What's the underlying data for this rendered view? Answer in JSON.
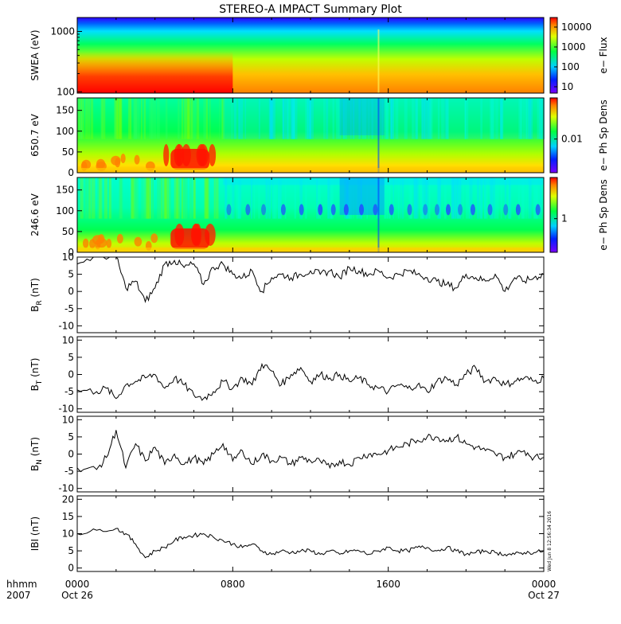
{
  "title": "STEREO-A IMPACT Summary Plot",
  "stamp": "Wed Jun  8 12:56:34 2016",
  "chart_data": [
    {
      "type": "heatmap",
      "name": "swea-flux",
      "ylabel": "SWEA (eV)",
      "yscale": "log",
      "yticks": [
        {
          "label": "1000",
          "value": 1000
        },
        {
          "label": "100",
          "value": 100
        }
      ],
      "ylim": [
        95,
        1700
      ],
      "colorbar": {
        "label": "e− Flux",
        "scale": "log",
        "ticks": [
          "10000",
          "1000",
          "100",
          "10"
        ]
      }
    },
    {
      "type": "heatmap",
      "name": "pad-650",
      "ylabel": "650.7 eV",
      "yticks": [
        "150",
        "100",
        "50",
        "0"
      ],
      "ylim": [
        0,
        180
      ],
      "colorbar": {
        "label": "e− Ph Sp Dens",
        "scale": "log",
        "ticks": [
          "0.01"
        ]
      }
    },
    {
      "type": "heatmap",
      "name": "pad-246",
      "ylabel": "246.6 eV",
      "yticks": [
        "150",
        "100",
        "50",
        "0"
      ],
      "ylim": [
        0,
        180
      ],
      "colorbar": {
        "label": "e− Ph Sp Dens",
        "scale": "log",
        "ticks": [
          "1"
        ]
      }
    },
    {
      "type": "line",
      "name": "br",
      "ylabel": "B",
      "ysub": "R",
      "yunit": " (nT)",
      "ylim": [
        -12,
        10
      ],
      "yticks": [
        "10",
        "5",
        "0",
        "-5",
        "-10"
      ],
      "x": [
        0,
        1,
        2,
        2.5,
        3,
        3.5,
        4,
        4.5,
        5,
        5.5,
        6,
        6.5,
        7,
        7.5,
        8,
        8.5,
        9,
        9.5,
        10,
        10.5,
        11,
        11.5,
        12,
        12.5,
        13,
        13.5,
        14,
        14.5,
        15,
        15.5,
        16,
        16.5,
        17,
        17.5,
        18,
        18.5,
        19,
        19.5,
        20,
        20.5,
        21,
        21.5,
        22,
        22.5,
        23,
        23.5,
        24
      ],
      "values": [
        8,
        10.5,
        10,
        1,
        3,
        -3,
        1,
        8,
        9,
        7,
        8,
        2,
        7,
        8,
        5,
        4,
        6,
        0,
        4,
        5,
        4,
        5,
        6,
        5,
        6,
        4,
        7,
        6,
        5,
        6,
        4,
        5,
        6,
        5,
        4,
        3,
        2,
        1,
        5,
        4,
        3,
        5,
        0,
        4,
        3,
        4,
        5
      ]
    },
    {
      "type": "line",
      "name": "bt",
      "ylabel": "B",
      "ysub": "T",
      "yunit": " (nT)",
      "ylim": [
        -11,
        11
      ],
      "yticks": [
        "10",
        "5",
        "0",
        "-5",
        "-10"
      ],
      "x": [
        0,
        1,
        1.5,
        2,
        2.5,
        3,
        3.5,
        4,
        4.5,
        5,
        5.5,
        6,
        6.5,
        7,
        7.5,
        8,
        8.5,
        9,
        9.5,
        10,
        10.5,
        11,
        11.5,
        12,
        12.5,
        13,
        13.5,
        14,
        14.5,
        15,
        15.5,
        16,
        16.5,
        17,
        17.5,
        18,
        18.5,
        19,
        19.5,
        20,
        20.5,
        21,
        21.5,
        22,
        22.5,
        23,
        23.5,
        24
      ],
      "values": [
        -4.5,
        -5,
        -4,
        -7,
        -3,
        -2,
        -1,
        0,
        -4,
        -1,
        -3,
        -6,
        -7,
        -5,
        -2,
        -4,
        -1,
        -3,
        3,
        1,
        -3,
        0,
        2,
        -2,
        0,
        -1,
        0,
        -2,
        -1,
        -3,
        -4,
        -5,
        -3,
        -4,
        -3,
        -5,
        -2,
        -1,
        -3,
        0,
        2,
        -2,
        -1,
        -3,
        -2,
        -1,
        -2,
        -1
      ]
    },
    {
      "type": "line",
      "name": "bn",
      "ylabel": "B",
      "ysub": "N",
      "yunit": " (nT)",
      "ylim": [
        -11,
        11
      ],
      "yticks": [
        "10",
        "5",
        "0",
        "-5",
        "-10"
      ],
      "x": [
        0,
        1,
        1.5,
        2,
        2.5,
        3,
        3.5,
        4,
        4.5,
        5,
        5.5,
        6,
        6.5,
        7,
        7.5,
        8,
        8.5,
        9,
        9.5,
        10,
        10.5,
        11,
        11.5,
        12,
        12.5,
        13,
        13.5,
        14,
        14.5,
        15,
        15.5,
        16,
        16.5,
        17,
        17.5,
        18,
        18.5,
        19,
        19.5,
        20,
        20.5,
        21,
        21.5,
        22,
        22.5,
        23,
        23.5,
        24
      ],
      "values": [
        -4,
        -4.5,
        -1,
        7,
        -4,
        3,
        -2,
        2,
        -3,
        0,
        -3,
        -1,
        -3,
        0,
        3,
        -2,
        1,
        -3,
        0,
        -2,
        -1,
        -3,
        -1,
        -2,
        -2,
        -4,
        -2,
        -3,
        -1,
        0,
        0,
        1,
        2,
        3,
        4,
        5,
        5,
        4,
        5,
        3,
        2,
        1,
        0,
        -1,
        0,
        1,
        -1,
        -1
      ]
    },
    {
      "type": "line",
      "name": "btot",
      "ylabel": "IBI",
      "ysub": "",
      "yunit": " (nT)",
      "ylim": [
        -1,
        21
      ],
      "yticks": [
        "20",
        "15",
        "10",
        "5",
        "0"
      ],
      "x": [
        0,
        1,
        2,
        2.5,
        3,
        3.5,
        4,
        4.5,
        5,
        5.5,
        6,
        6.5,
        7,
        7.5,
        8,
        8.5,
        9,
        9.5,
        10,
        10.5,
        11,
        11.5,
        12,
        12.5,
        13,
        13.5,
        14,
        14.5,
        15,
        15.5,
        16,
        16.5,
        17,
        17.5,
        18,
        18.5,
        19,
        19.5,
        20,
        20.5,
        21,
        21.5,
        22,
        22.5,
        23,
        23.5,
        24
      ],
      "values": [
        10,
        11,
        11.5,
        10,
        7,
        3,
        5,
        6,
        8,
        9,
        9.5,
        10,
        9,
        8,
        7,
        6,
        7,
        5,
        4,
        5,
        4.5,
        5,
        5,
        4,
        5,
        4,
        5,
        5,
        4,
        5,
        6,
        5,
        5,
        6,
        6,
        5,
        6,
        5,
        4,
        4.5,
        5,
        4.5,
        4,
        4,
        4.5,
        4.5,
        5
      ]
    }
  ],
  "xaxis": {
    "corner_top": "hhmm",
    "corner_bottom": "2007",
    "ticks": [
      {
        "top": "0000",
        "bottom": "Oct 26",
        "hour": 0
      },
      {
        "top": "0800",
        "bottom": "",
        "hour": 8
      },
      {
        "top": "1600",
        "bottom": "",
        "hour": 16
      },
      {
        "top": "0000",
        "bottom": "Oct 27",
        "hour": 24
      }
    ]
  }
}
